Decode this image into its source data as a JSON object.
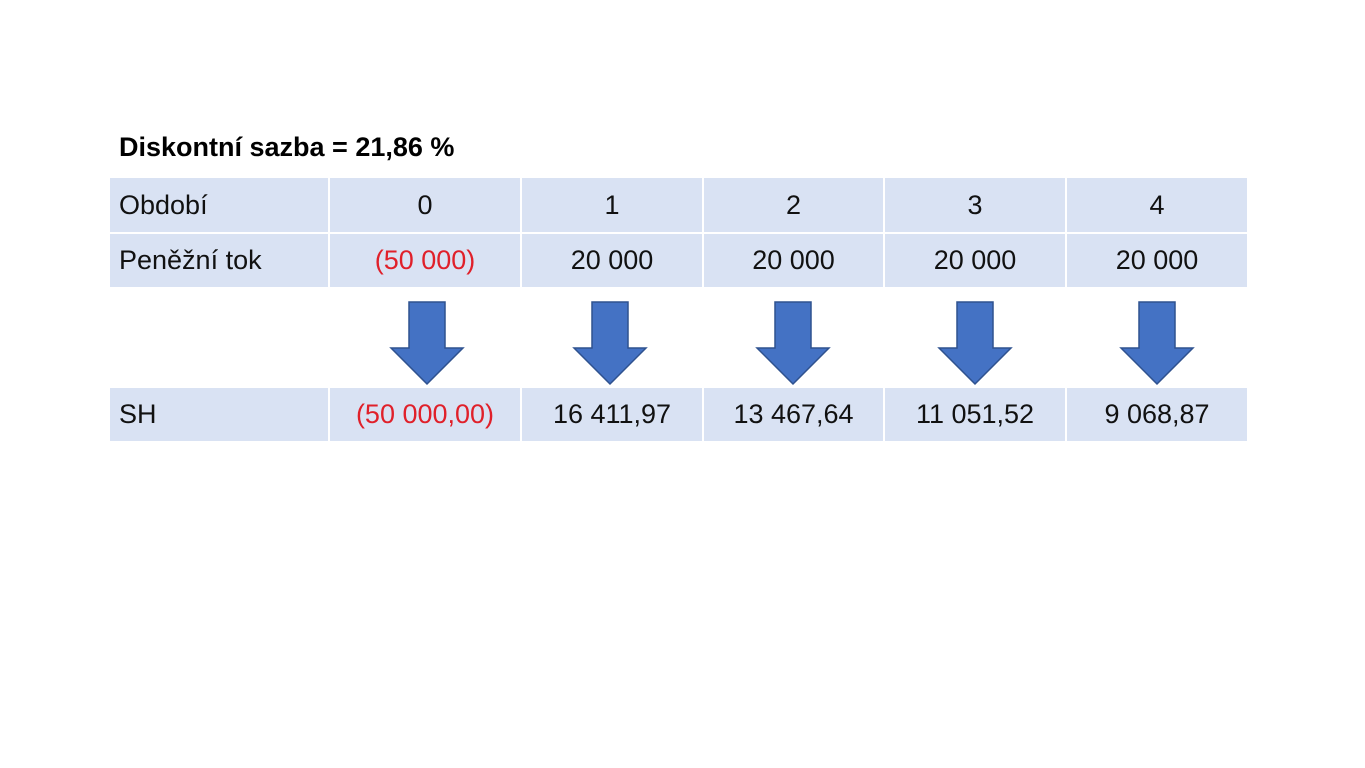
{
  "title": "Diskontní sazba = 21,86 %",
  "table": {
    "rows": [
      [
        "Období",
        "0",
        "1",
        "2",
        "3",
        "4"
      ],
      [
        "Peněžní tok",
        "(50 000)",
        "20 000",
        "20 000",
        "20 000",
        "20 000"
      ],
      [
        "SH",
        "(50 000,00)",
        "16 411,97",
        "13 467,64",
        "11 051,52",
        "9 068,87"
      ]
    ]
  }
}
